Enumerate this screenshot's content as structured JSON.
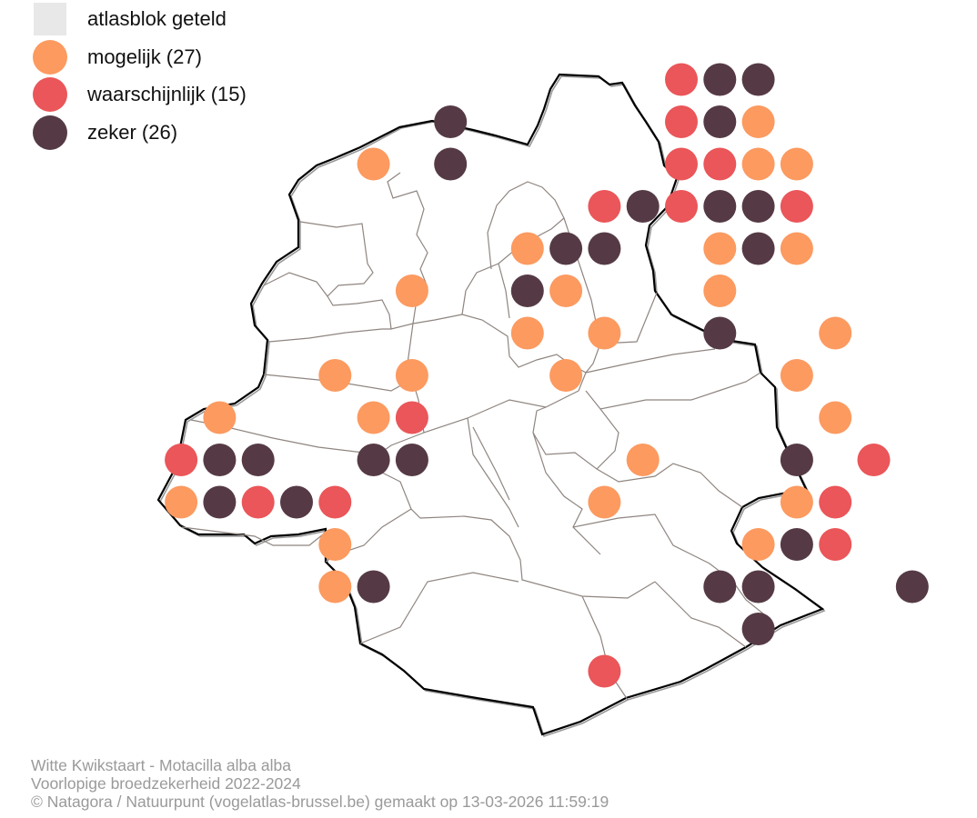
{
  "legend": {
    "counted_label": "atlasblok geteld",
    "categories": [
      {
        "key": "mogelijk",
        "label": "mogelijk (27)",
        "color": "#fc9a60"
      },
      {
        "key": "waarschijnlijk",
        "label": "waarschijnlijk (15)",
        "color": "#ea5659"
      },
      {
        "key": "zeker",
        "label": "zeker (26)",
        "color": "#553a45"
      }
    ],
    "counted_color": "#e8e8e8"
  },
  "footer": {
    "line1": "Witte Kwikstaart - Motacilla alba alba",
    "line2": "Voorlopige broedzekerheid 2022-2024",
    "line3": "© Natagora / Natuurpunt (vogelatlas-brussel.be) gemaakt op 13-03-2026 11:59:19"
  },
  "map_observations": [
    {
      "col": 10,
      "row": 1,
      "status": "waarschijnlijk"
    },
    {
      "col": 11,
      "row": 1,
      "status": "zeker"
    },
    {
      "col": 12,
      "row": 1,
      "status": "zeker"
    },
    {
      "col": 4,
      "row": 2,
      "status": "zeker"
    },
    {
      "col": 10,
      "row": 2,
      "status": "waarschijnlijk"
    },
    {
      "col": 11,
      "row": 2,
      "status": "zeker"
    },
    {
      "col": 12,
      "row": 2,
      "status": "mogelijk"
    },
    {
      "col": 2,
      "row": 3,
      "status": "mogelijk"
    },
    {
      "col": 4,
      "row": 3,
      "status": "zeker"
    },
    {
      "col": 10,
      "row": 3,
      "status": "waarschijnlijk"
    },
    {
      "col": 11,
      "row": 3,
      "status": "waarschijnlijk"
    },
    {
      "col": 12,
      "row": 3,
      "status": "mogelijk"
    },
    {
      "col": 13,
      "row": 3,
      "status": "mogelijk"
    },
    {
      "col": 8,
      "row": 4,
      "status": "waarschijnlijk"
    },
    {
      "col": 9,
      "row": 4,
      "status": "zeker"
    },
    {
      "col": 10,
      "row": 4,
      "status": "waarschijnlijk"
    },
    {
      "col": 11,
      "row": 4,
      "status": "zeker"
    },
    {
      "col": 12,
      "row": 4,
      "status": "zeker"
    },
    {
      "col": 13,
      "row": 4,
      "status": "waarschijnlijk"
    },
    {
      "col": 6,
      "row": 5,
      "status": "mogelijk"
    },
    {
      "col": 7,
      "row": 5,
      "status": "zeker"
    },
    {
      "col": 8,
      "row": 5,
      "status": "zeker"
    },
    {
      "col": 11,
      "row": 5,
      "status": "mogelijk"
    },
    {
      "col": 12,
      "row": 5,
      "status": "zeker"
    },
    {
      "col": 13,
      "row": 5,
      "status": "mogelijk"
    },
    {
      "col": 3,
      "row": 6,
      "status": "mogelijk"
    },
    {
      "col": 6,
      "row": 6,
      "status": "zeker"
    },
    {
      "col": 7,
      "row": 6,
      "status": "mogelijk"
    },
    {
      "col": 11,
      "row": 6,
      "status": "mogelijk"
    },
    {
      "col": 6,
      "row": 7,
      "status": "mogelijk"
    },
    {
      "col": 8,
      "row": 7,
      "status": "mogelijk"
    },
    {
      "col": 11,
      "row": 7,
      "status": "zeker"
    },
    {
      "col": 14,
      "row": 7,
      "status": "mogelijk"
    },
    {
      "col": 1,
      "row": 8,
      "status": "mogelijk"
    },
    {
      "col": 3,
      "row": 8,
      "status": "mogelijk"
    },
    {
      "col": 7,
      "row": 8,
      "status": "mogelijk"
    },
    {
      "col": 13,
      "row": 8,
      "status": "mogelijk"
    },
    {
      "col": -2,
      "row": 9,
      "status": "mogelijk"
    },
    {
      "col": 2,
      "row": 9,
      "status": "mogelijk"
    },
    {
      "col": 3,
      "row": 9,
      "status": "waarschijnlijk"
    },
    {
      "col": 14,
      "row": 9,
      "status": "mogelijk"
    },
    {
      "col": -3,
      "row": 10,
      "status": "waarschijnlijk"
    },
    {
      "col": -2,
      "row": 10,
      "status": "zeker"
    },
    {
      "col": -1,
      "row": 10,
      "status": "zeker"
    },
    {
      "col": 2,
      "row": 10,
      "status": "zeker"
    },
    {
      "col": 3,
      "row": 10,
      "status": "zeker"
    },
    {
      "col": 9,
      "row": 10,
      "status": "mogelijk"
    },
    {
      "col": 13,
      "row": 10,
      "status": "zeker"
    },
    {
      "col": 15,
      "row": 10,
      "status": "waarschijnlijk"
    },
    {
      "col": -3,
      "row": 11,
      "status": "mogelijk"
    },
    {
      "col": -2,
      "row": 11,
      "status": "zeker"
    },
    {
      "col": -1,
      "row": 11,
      "status": "waarschijnlijk"
    },
    {
      "col": 0,
      "row": 11,
      "status": "zeker"
    },
    {
      "col": 1,
      "row": 11,
      "status": "waarschijnlijk"
    },
    {
      "col": 8,
      "row": 11,
      "status": "mogelijk"
    },
    {
      "col": 13,
      "row": 11,
      "status": "mogelijk"
    },
    {
      "col": 14,
      "row": 11,
      "status": "waarschijnlijk"
    },
    {
      "col": 1,
      "row": 12,
      "status": "mogelijk"
    },
    {
      "col": 12,
      "row": 12,
      "status": "mogelijk"
    },
    {
      "col": 13,
      "row": 12,
      "status": "zeker"
    },
    {
      "col": 14,
      "row": 12,
      "status": "waarschijnlijk"
    },
    {
      "col": 1,
      "row": 13,
      "status": "mogelijk"
    },
    {
      "col": 2,
      "row": 13,
      "status": "zeker"
    },
    {
      "col": 11,
      "row": 13,
      "status": "zeker"
    },
    {
      "col": 12,
      "row": 13,
      "status": "zeker"
    },
    {
      "col": 16,
      "row": 13,
      "status": "zeker"
    },
    {
      "col": 12,
      "row": 14,
      "status": "zeker"
    },
    {
      "col": 8,
      "row": 15,
      "status": "waarschijnlijk"
    }
  ]
}
